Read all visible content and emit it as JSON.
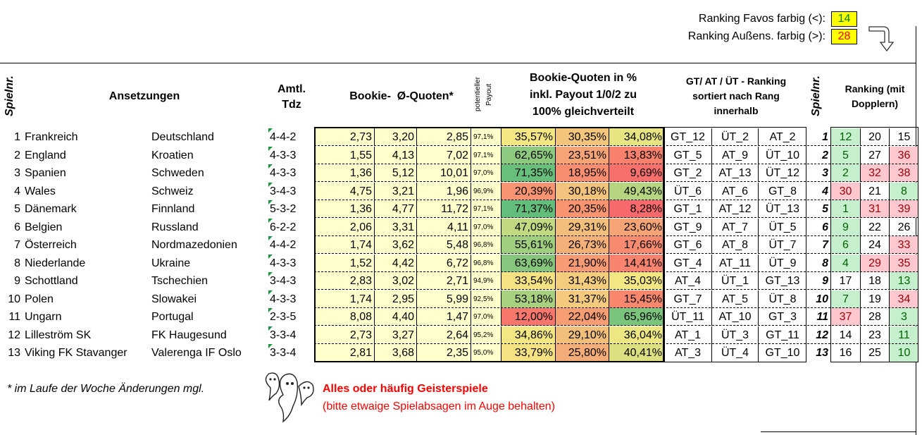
{
  "legend": {
    "favos_label": "Ranking Favos farbig (<):",
    "favos_value": "14",
    "aussens_label": "Ranking Außens. farbig (>):",
    "aussens_value": "28"
  },
  "headers": {
    "spielnr": "Spielnr.",
    "ansetzungen": "Ansetzungen",
    "amtl_tdz_1": "Amtl.",
    "amtl_tdz_2": "Tdz",
    "bookie_quoten": "Bookie-  Ø-Quoten*",
    "payout_1": "potentieller",
    "payout_2": "Payout",
    "prozent_1": "Bookie-Quoten in %",
    "prozent_2": "inkl. Payout 1/0/2 zu",
    "prozent_3": "100% gleichverteilt",
    "gtatut_1": "GT/ AT / ÜT - Ranking",
    "gtatut_2": "sortiert nach Rang",
    "gtatut_3": "innerhalb",
    "spielnr2": "Spielnr.",
    "ranking_1": "Ranking (mit",
    "ranking_2": "Dopplern)"
  },
  "colors": {
    "green_strong": "#63be7b",
    "red_strong": "#f8696b",
    "rank_green_bg": "#c6efce",
    "rank_green_fg": "#006100",
    "rank_red_bg": "#ffc7ce",
    "rank_red_fg": "#9c0006",
    "yellow": "#ffffcc"
  },
  "rows": [
    {
      "nr": "1",
      "home": "Frankreich",
      "away": "Deutschland",
      "tdz": "4-4-2",
      "q1": "2,73",
      "q0": "3,20",
      "q2": "2,85",
      "payout": "97,1%",
      "p1": "35,57%",
      "p0": "30,35%",
      "p2": "34,08%",
      "g1": "GT_12",
      "g2": "ÜT_2",
      "g3": "AT_2",
      "nr2": "1",
      "r1": "12",
      "r2": "20",
      "r3": "15",
      "rc": [
        "g",
        "n",
        "n"
      ],
      "pc": [
        "#f4e783",
        "#f2c47c",
        "#e7e482"
      ]
    },
    {
      "nr": "2",
      "home": "England",
      "away": "Kroatien",
      "tdz": "4-3-3",
      "q1": "1,55",
      "q0": "4,13",
      "q2": "7,02",
      "payout": "97,1%",
      "p1": "62,65%",
      "p0": "23,51%",
      "p2": "13,83%",
      "g1": "GT_5",
      "g2": "AT_9",
      "g3": "ÜT_10",
      "nr2": "2",
      "r1": "5",
      "r2": "27",
      "r3": "36",
      "rc": [
        "g",
        "n",
        "r"
      ],
      "pc": [
        "#8dc97e",
        "#f5a476",
        "#f8816e"
      ]
    },
    {
      "nr": "3",
      "home": "Spanien",
      "away": "Schweden",
      "tdz": "4-3-3",
      "q1": "1,36",
      "q0": "5,12",
      "q2": "10,01",
      "payout": "97,0%",
      "p1": "71,35%",
      "p0": "18,95%",
      "p2": "9,69%",
      "g1": "GT_2",
      "g2": "AT_13",
      "g3": "ÜT_12",
      "nr2": "3",
      "r1": "2",
      "r2": "32",
      "r3": "38",
      "rc": [
        "g",
        "r",
        "r"
      ],
      "pc": [
        "#68bf7b",
        "#f88d70",
        "#f8706c"
      ]
    },
    {
      "nr": "4",
      "home": "Wales",
      "away": "Schweiz",
      "tdz": "3-4-3",
      "q1": "4,75",
      "q0": "3,21",
      "q2": "1,96",
      "payout": "96,9%",
      "p1": "20,39%",
      "p0": "30,18%",
      "p2": "49,43%",
      "g1": "ÜT_6",
      "g2": "AT_6",
      "g3": "GT_8",
      "nr2": "4",
      "r1": "30",
      "r2": "21",
      "r3": "8",
      "rc": [
        "r",
        "n",
        "g"
      ],
      "pc": [
        "#f89471",
        "#f2c37c",
        "#b5d580"
      ]
    },
    {
      "nr": "5",
      "home": "Dänemark",
      "away": "Finnland",
      "tdz": "5-3-2",
      "q1": "1,36",
      "q0": "4,77",
      "q2": "11,72",
      "payout": "97,1%",
      "p1": "71,37%",
      "p0": "20,35%",
      "p2": "8,28%",
      "g1": "GT_1",
      "g2": "AT_12",
      "g3": "ÜT_13",
      "nr2": "5",
      "r1": "1",
      "r2": "31",
      "r3": "39",
      "rc": [
        "g",
        "r",
        "r"
      ],
      "pc": [
        "#63be7b",
        "#f8946f",
        "#f8696b"
      ]
    },
    {
      "nr": "6",
      "home": "Belgien",
      "away": "Russland",
      "tdz": "6-2-2",
      "q1": "2,06",
      "q0": "3,31",
      "q2": "4,11",
      "payout": "97,0%",
      "p1": "47,09%",
      "p0": "29,31%",
      "p2": "23,60%",
      "g1": "GT_9",
      "g2": "AT_7",
      "g3": "ÜT_5",
      "nr2": "6",
      "r1": "9",
      "r2": "22",
      "r3": "26",
      "rc": [
        "g",
        "n",
        "n"
      ],
      "pc": [
        "#c1d981",
        "#f2be7b",
        "#f5a476"
      ]
    },
    {
      "nr": "7",
      "home": "Österreich",
      "away": "Nordmazedonien",
      "tdz": "4-4-2",
      "q1": "1,74",
      "q0": "3,62",
      "q2": "5,48",
      "payout": "96,8%",
      "p1": "55,61%",
      "p0": "26,73%",
      "p2": "17,66%",
      "g1": "GT_6",
      "g2": "AT_8",
      "g3": "ÜT_7",
      "nr2": "7",
      "r1": "6",
      "r2": "24",
      "r3": "33",
      "rc": [
        "g",
        "n",
        "r"
      ],
      "pc": [
        "#a0ce7f",
        "#f4b079",
        "#f88b6f"
      ]
    },
    {
      "nr": "8",
      "home": "Niederlande",
      "away": "Ukraine",
      "tdz": "4-3-3",
      "q1": "1,52",
      "q0": "4,42",
      "q2": "6,72",
      "payout": "96,8%",
      "p1": "63,69%",
      "p0": "21,90%",
      "p2": "14,41%",
      "g1": "GT_4",
      "g2": "AT_11",
      "g3": "ÜT_9",
      "nr2": "8",
      "r1": "4",
      "r2": "29",
      "r3": "35",
      "rc": [
        "g",
        "r",
        "r"
      ],
      "pc": [
        "#86c77d",
        "#f69b73",
        "#f8836e"
      ]
    },
    {
      "nr": "9",
      "home": "Schottland",
      "away": "Tschechien",
      "tdz": "3-4-3",
      "q1": "2,83",
      "q0": "3,02",
      "q2": "2,71",
      "payout": "94,9%",
      "p1": "33,54%",
      "p0": "31,43%",
      "p2": "35,03%",
      "g1": "AT_4",
      "g2": "ÜT_1",
      "g3": "GT_13",
      "nr2": "9",
      "r1": "17",
      "r2": "18",
      "r3": "13",
      "rc": [
        "n",
        "n",
        "g"
      ],
      "pc": [
        "#f5e383",
        "#f4cc7e",
        "#f2e783"
      ]
    },
    {
      "nr": "10",
      "home": "Polen",
      "away": "Slowakei",
      "tdz": "4-3-3",
      "q1": "1,74",
      "q0": "2,95",
      "q2": "5,99",
      "payout": "92,5%",
      "p1": "53,18%",
      "p0": "31,37%",
      "p2": "15,45%",
      "g1": "GT_7",
      "g2": "AT_5",
      "g3": "ÜT_8",
      "nr2": "10",
      "r1": "7",
      "r2": "19",
      "r3": "34",
      "rc": [
        "g",
        "n",
        "r"
      ],
      "pc": [
        "#a8d17f",
        "#f4cb7e",
        "#f8876e"
      ]
    },
    {
      "nr": "11",
      "home": "Ungarn",
      "away": "Portugal",
      "tdz": "2-3-5",
      "q1": "8,08",
      "q0": "4,40",
      "q2": "1,47",
      "payout": "97,0%",
      "p1": "12,00%",
      "p0": "22,04%",
      "p2": "65,96%",
      "g1": "ÜT_11",
      "g2": "AT_10",
      "g3": "GT_3",
      "nr2": "11",
      "r1": "37",
      "r2": "28",
      "r3": "3",
      "rc": [
        "r",
        "n",
        "g"
      ],
      "pc": [
        "#f8776c",
        "#f79d73",
        "#7bc47c"
      ]
    },
    {
      "nr": "12",
      "home": "Lilleström SK",
      "away": "FK Haugesund",
      "tdz": "3-3-4",
      "q1": "2,73",
      "q0": "3,27",
      "q2": "2,64",
      "payout": "95,2%",
      "p1": "34,86%",
      "p0": "29,10%",
      "p2": "36,04%",
      "g1": "AT_1",
      "g2": "ÜT_3",
      "g3": "GT_11",
      "nr2": "12",
      "r1": "14",
      "r2": "23",
      "r3": "11",
      "rc": [
        "n",
        "n",
        "g"
      ],
      "pc": [
        "#f2e783",
        "#f2bf7b",
        "#ece683"
      ]
    },
    {
      "nr": "13",
      "home": "Viking FK Stavanger",
      "away": "Valerenga IF Oslo",
      "tdz": "3-3-4",
      "q1": "2,81",
      "q0": "3,68",
      "q2": "2,35",
      "payout": "95,0%",
      "p1": "33,79%",
      "p0": "25,80%",
      "p2": "40,41%",
      "g1": "AT_3",
      "g2": "ÜT_4",
      "g3": "GT_10",
      "nr2": "13",
      "r1": "16",
      "r2": "25",
      "r3": "10",
      "rc": [
        "n",
        "n",
        "g"
      ],
      "pc": [
        "#f5e383",
        "#f4ad78",
        "#dde081"
      ]
    }
  ],
  "footer": {
    "note": "* im Laufe der Woche Änderungen mgl.",
    "ghost_title": "Alles oder häufig Geisterspiele",
    "ghost_sub": "(bitte etwaige Spielabsagen im Auge behalten)"
  }
}
